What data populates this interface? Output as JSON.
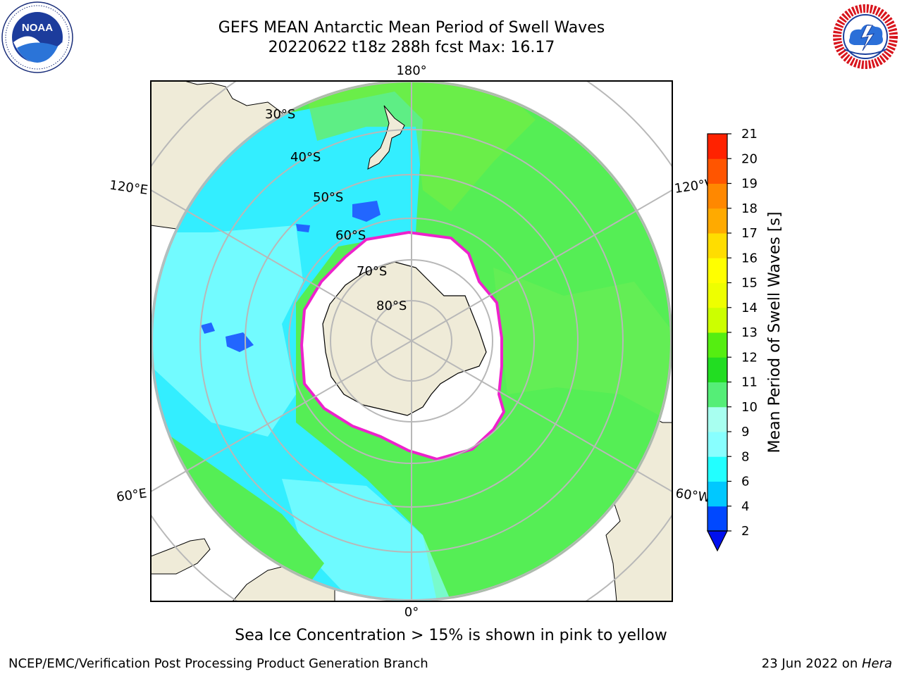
{
  "header": {
    "title_line1": "GEFS MEAN Antarctic Mean Period of Swell Waves",
    "title_line2": "20220622 t18z 288h fcst   Max: 16.17"
  },
  "map": {
    "projection": "south-polar-stereographic",
    "lon_labels": {
      "top": "180°",
      "bottom": "0°",
      "upper_left": "120°E",
      "upper_right": "120°W",
      "lower_left": "60°E",
      "lower_right": "60°W"
    },
    "lat_labels": [
      "30°S",
      "40°S",
      "50°S",
      "60°S",
      "70°S",
      "80°S"
    ],
    "field_colors": {
      "land": "#efebd8",
      "sea_ice": "#ffffff",
      "ice_edge": "#ee22cc",
      "cyan": "#33eeff",
      "light_cyan": "#88ffff",
      "green": "#55ee55",
      "bright_green": "#33dd33",
      "deep_blue": "#2266ff",
      "grid": "#b8b8b8"
    }
  },
  "colorbar": {
    "label": "Mean Period of Swell Waves [s]",
    "ticks": [
      "2",
      "4",
      "6",
      "8",
      "9",
      "10",
      "11",
      "12",
      "13",
      "14",
      "15",
      "16",
      "17",
      "18",
      "19",
      "20",
      "21"
    ],
    "colors": [
      "#0048ff",
      "#00c8ff",
      "#22ffff",
      "#88ffff",
      "#a8fff0",
      "#55ee77",
      "#22dd22",
      "#55ee11",
      "#ccff00",
      "#eeff00",
      "#ffff00",
      "#ffdd00",
      "#ffaa00",
      "#ff8800",
      "#ff5500",
      "#ff2200"
    ],
    "extend_color": "#0010ee"
  },
  "footnote": "Sea Ice Concentration > 15% is shown in pink to yellow",
  "footer": {
    "left": "NCEP/EMC/Verification Post Processing Product Generation Branch",
    "right_date": "23 Jun 2022 on ",
    "right_machine": "Hera"
  }
}
